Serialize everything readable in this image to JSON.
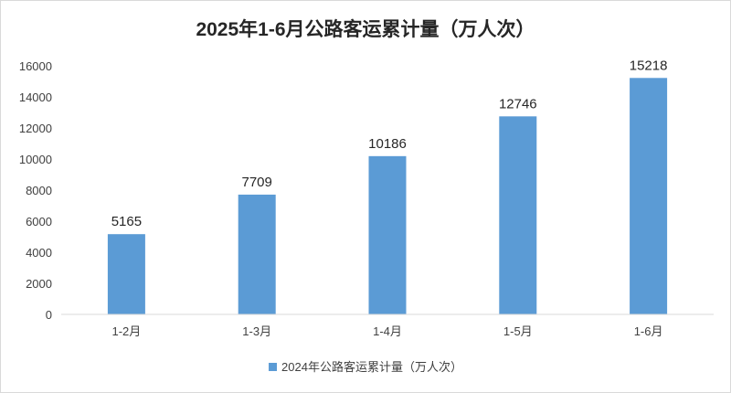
{
  "chart_data": {
    "type": "bar",
    "title": "2025年1-6月公路客运累计量（万人次）",
    "xlabel": "",
    "ylabel": "",
    "categories": [
      "1-2月",
      "1-3月",
      "1-4月",
      "1-5月",
      "1-6月"
    ],
    "series": [
      {
        "name": "2024年公路客运累计量（万人次）",
        "values": [
          5165,
          7709,
          10186,
          12746,
          15218
        ],
        "color": "#5b9bd5"
      }
    ],
    "ylim": [
      0,
      16000
    ],
    "yticks": [
      "0",
      "2000",
      "4000",
      "6000",
      "8000",
      "10000",
      "12000",
      "14000",
      "16000"
    ],
    "grid": false,
    "data_labels": true,
    "legend_position": "bottom"
  }
}
